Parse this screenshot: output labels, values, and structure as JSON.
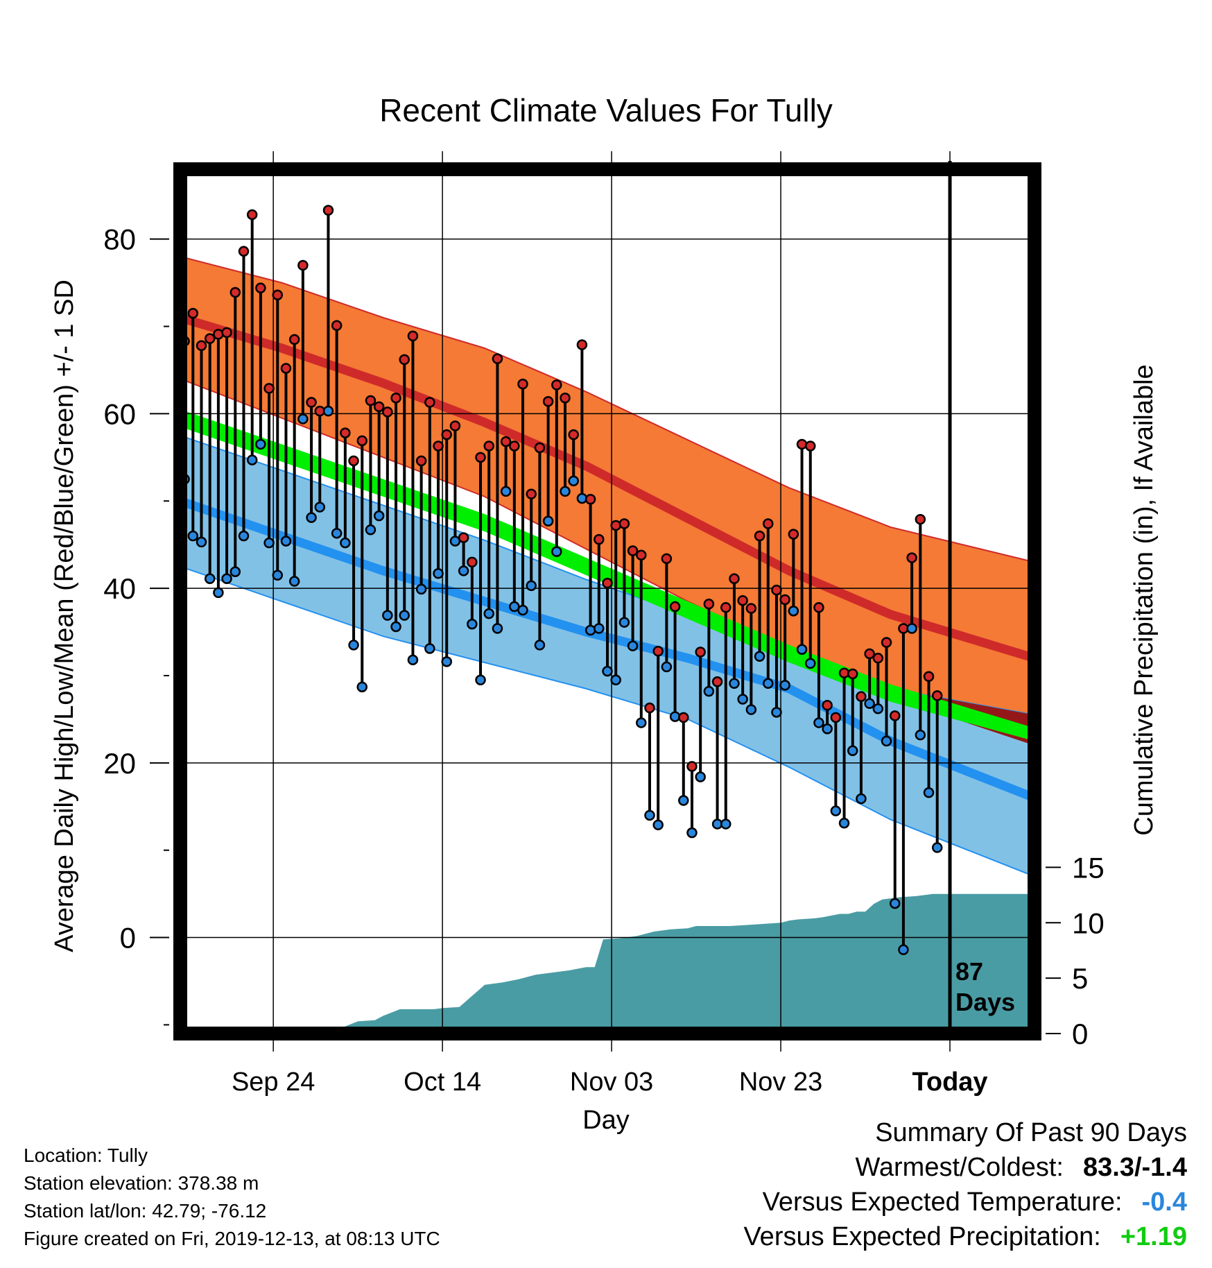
{
  "chart_data": {
    "type": "line",
    "title": "Recent Climate Values For Tully",
    "xlabel": "Day",
    "ylabel": "Average Daily High/Low/Mean (Red/Blue/Green) +/- 1 SD",
    "y2label": "Cumulative Precipitation (in), If Available",
    "x_ticks": [
      "Sep 24",
      "Oct 14",
      "Nov 03",
      "Nov 23",
      "Today"
    ],
    "x_tick_days": [
      11,
      31,
      51,
      71,
      91
    ],
    "xlim": [
      0,
      101
    ],
    "ylim": [
      -11,
      88
    ],
    "y_ticks": [
      0,
      20,
      40,
      60,
      80
    ],
    "y2lim": [
      0,
      78
    ],
    "y2_ticks": [
      0,
      5,
      10,
      15
    ],
    "grid": true,
    "today_marker": {
      "day": 91,
      "label_line1": "87",
      "label_line2": "Days"
    },
    "colors": {
      "high_band": "#f47a35",
      "high_mean": "#cf2a2a",
      "low_band": "#82c1e6",
      "low_mean": "#2391ef",
      "mean_band": "#00ee00",
      "overlap": "#941818",
      "precip": "#4a9ca4",
      "high_dot": "#d42a2a",
      "low_dot": "#2a86dc"
    },
    "normals": {
      "days": [
        0,
        12,
        24,
        36,
        48,
        60,
        72,
        84,
        101
      ],
      "high_upper": [
        78,
        75,
        71,
        67.5,
        62.5,
        57,
        51.5,
        47,
        43
      ],
      "high_mean": [
        71,
        67.5,
        63.5,
        59,
        54,
        48,
        42,
        37,
        32
      ],
      "high_lower": [
        64,
        59.5,
        55,
        50.5,
        44.5,
        38.5,
        33,
        27.5,
        22
      ],
      "mean_upper": [
        60.5,
        56.5,
        52.5,
        48.5,
        43.5,
        38.5,
        33.5,
        29,
        24
      ],
      "mean_lower": [
        58.5,
        54.5,
        50.5,
        46.5,
        41.5,
        36.5,
        31.5,
        27,
        22.5
      ],
      "low_upper": [
        57.5,
        53.5,
        49.5,
        45.5,
        41,
        37,
        33,
        28.5,
        25.5
      ],
      "low_mean": [
        50,
        46,
        42,
        38.5,
        35,
        32,
        28.5,
        22.5,
        16
      ],
      "low_lower": [
        42.5,
        38.5,
        34.5,
        31.5,
        28.5,
        25,
        19.5,
        13.5,
        7
      ]
    },
    "series": [
      {
        "name": "High",
        "values": [
          68.3,
          71.5,
          67.8,
          68.6,
          69.1,
          69.3,
          73.9,
          78.6,
          82.8,
          74.4,
          62.9,
          73.6,
          65.2,
          68.5,
          77.0,
          61.3,
          60.3,
          83.3,
          70.1,
          57.8,
          54.6,
          56.9,
          61.5,
          60.8,
          60.2,
          61.8,
          66.2,
          68.9,
          54.6,
          61.3,
          56.3,
          57.6,
          58.6,
          45.8,
          43.0,
          55.0,
          56.3,
          66.3,
          56.8,
          56.3,
          63.4,
          50.8,
          56.1,
          61.4,
          63.3,
          61.8,
          57.6,
          67.9,
          50.2,
          45.6,
          40.6,
          47.2,
          47.4,
          44.3,
          43.8,
          26.3,
          32.8,
          43.4,
          37.9,
          25.2,
          19.6,
          32.7,
          38.2,
          29.3,
          37.8,
          41.1,
          38.6,
          37.7,
          46.0,
          47.4,
          39.8,
          38.7,
          46.2,
          56.5,
          56.3,
          37.8,
          26.6,
          25.2,
          30.3,
          30.2,
          27.6,
          32.5,
          32.0,
          33.8,
          25.4,
          35.4,
          43.5,
          47.9,
          29.9,
          27.7
        ]
      },
      {
        "name": "Low",
        "values": [
          52.5,
          46.0,
          45.3,
          41.1,
          39.5,
          41.1,
          41.9,
          46.0,
          54.7,
          56.5,
          45.2,
          41.5,
          45.4,
          40.8,
          59.4,
          48.1,
          49.3,
          60.3,
          46.3,
          45.2,
          33.5,
          28.7,
          46.7,
          48.3,
          36.9,
          35.6,
          36.9,
          31.8,
          39.9,
          33.1,
          41.7,
          31.6,
          45.4,
          42.0,
          35.9,
          29.5,
          37.1,
          35.4,
          51.1,
          37.9,
          37.5,
          40.3,
          33.5,
          47.7,
          44.2,
          51.1,
          52.3,
          50.3,
          35.2,
          35.4,
          30.5,
          29.5,
          36.1,
          33.4,
          24.6,
          14.0,
          12.9,
          31.0,
          25.3,
          15.7,
          12.0,
          18.4,
          28.2,
          13.0,
          13.0,
          29.1,
          27.3,
          26.1,
          32.2,
          29.1,
          25.8,
          28.9,
          37.4,
          33.0,
          31.4,
          24.6,
          23.9,
          14.5,
          13.1,
          21.4,
          15.9,
          26.8,
          26.2,
          22.5,
          3.9,
          -1.4,
          35.4,
          23.2,
          16.6,
          10.3
        ]
      }
    ],
    "precip_cumulative": {
      "x": [
        0,
        8.5,
        9.5,
        12,
        15,
        17,
        19,
        21,
        23,
        24,
        26,
        30,
        31,
        33,
        36,
        37,
        38,
        40,
        42,
        45,
        46,
        48,
        49,
        50,
        52,
        54,
        56,
        58,
        60,
        61,
        63,
        65,
        67,
        69,
        71,
        72,
        73,
        75,
        76,
        78,
        79,
        80,
        81,
        82,
        83,
        84,
        85,
        87,
        89,
        90,
        101
      ],
      "values": [
        0,
        0,
        0.2,
        0.4,
        0.4,
        0.5,
        0.5,
        1.1,
        1.2,
        1.6,
        2.2,
        2.2,
        2.3,
        2.4,
        4.4,
        4.5,
        4.6,
        4.9,
        5.3,
        5.6,
        5.7,
        6.0,
        6.0,
        8.5,
        8.6,
        8.8,
        9.2,
        9.4,
        9.5,
        9.7,
        9.7,
        9.7,
        9.8,
        9.9,
        10.0,
        10.2,
        10.3,
        10.4,
        10.5,
        10.8,
        10.8,
        11.0,
        11.0,
        11.7,
        12.1,
        12.2,
        12.3,
        12.4,
        12.6,
        12.6,
        12.6
      ]
    }
  },
  "summary": {
    "heading": "Summary Of Past 90 Days",
    "rows": [
      {
        "label": "Warmest/Coldest:",
        "value": "83.3/-1.4",
        "color": "#000000"
      },
      {
        "label": "Versus Expected Temperature:",
        "value": "-0.4",
        "color": "#2a86dc"
      },
      {
        "label": "Versus Expected Precipitation:",
        "value": "+1.19",
        "color": "#11cc11"
      }
    ]
  },
  "info": {
    "location": "Location: Tully",
    "elevation": "Station elevation: 378.38 m",
    "latlon": "Station lat/lon: 42.79; -76.12",
    "created": "Figure created on Fri, 2019-12-13, at 08:13 UTC"
  }
}
